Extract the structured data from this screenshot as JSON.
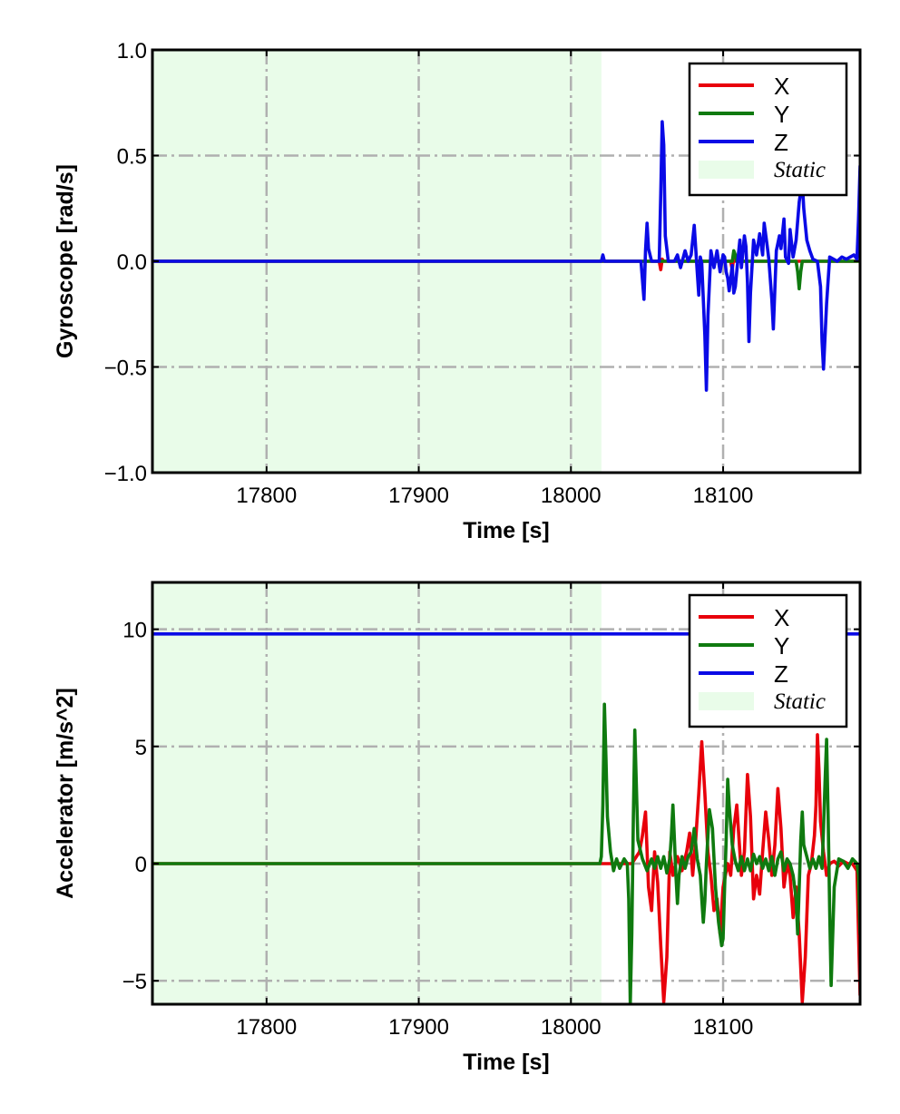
{
  "chart_data": [
    {
      "type": "line",
      "xlabel": "Time [s]",
      "ylabel": "Gyroscope [rad/s]",
      "xlim": [
        17725,
        18190
      ],
      "ylim": [
        -1.0,
        1.0
      ],
      "x_ticks": [
        17800,
        17900,
        18000,
        18100
      ],
      "x_tick_labels": [
        "17800",
        "17900",
        "18000",
        "18100"
      ],
      "y_ticks": [
        -1.0,
        -0.5,
        0.0,
        0.5,
        1.0
      ],
      "y_tick_labels": [
        "−1.0",
        "−0.5",
        "0.0",
        "0.5",
        "1.0"
      ],
      "grid": true,
      "legend_position": "top-right",
      "static_region": {
        "label": "Static",
        "x_start": 17725,
        "x_end": 18020,
        "color": "#e9fce9"
      },
      "series": [
        {
          "name": "X",
          "color": "#e8000b",
          "x": [
            17725,
            18000,
            18020,
            18058,
            18059,
            18060,
            18061,
            18105,
            18106,
            18107,
            18108,
            18190
          ],
          "y": [
            0,
            0,
            0,
            0,
            -0.04,
            0.01,
            0,
            0,
            -0.04,
            0.02,
            0,
            0
          ]
        },
        {
          "name": "Y",
          "color": "#0f7a0f",
          "x": [
            17725,
            18020,
            18106,
            18107,
            18108,
            18109,
            18148,
            18149,
            18150,
            18151,
            18152,
            18190
          ],
          "y": [
            0,
            0,
            0,
            0.05,
            0.03,
            0,
            0,
            -0.05,
            -0.13,
            -0.05,
            0,
            0
          ]
        },
        {
          "name": "Z",
          "color": "#0a0ae6",
          "x": [
            17725,
            18020,
            18021,
            18022,
            18046,
            18048,
            18049,
            18050,
            18051,
            18053,
            18058,
            18059,
            18060,
            18061,
            18062,
            18064,
            18068,
            18070,
            18072,
            18075,
            18077,
            18079,
            18081,
            18083,
            18084,
            18085,
            18086,
            18088,
            18089,
            18090,
            18092,
            18094,
            18096,
            18098,
            18100,
            18101,
            18102,
            18103,
            18104,
            18106,
            18107,
            18108,
            18110,
            18111,
            18112,
            18114,
            18115,
            18116,
            18117,
            18118,
            18120,
            18122,
            18124,
            18126,
            18127,
            18129,
            18130,
            18132,
            18133,
            18135,
            18137,
            18138,
            18140,
            18141,
            18143,
            18144,
            18146,
            18148,
            18150,
            18151,
            18152,
            18153,
            18155,
            18157,
            18159,
            18162,
            18164,
            18165,
            18166,
            18168,
            18170,
            18175,
            18178,
            18181,
            18186,
            18188,
            18189,
            18190
          ],
          "y": [
            0,
            0,
            0.03,
            0,
            0,
            -0.18,
            0.05,
            0.18,
            0.06,
            0,
            0,
            0.32,
            0.66,
            0.55,
            0.12,
            0,
            0,
            0.03,
            -0.03,
            0.05,
            0,
            0.03,
            0.17,
            -0.05,
            -0.16,
            0.02,
            -0.01,
            -0.35,
            -0.61,
            -0.26,
            0.05,
            -0.03,
            0.05,
            -0.05,
            0.03,
            0.02,
            -0.05,
            -0.08,
            -0.14,
            -0.02,
            -0.15,
            -0.12,
            0.03,
            0.1,
            -0.03,
            0.12,
            0.07,
            -0.1,
            -0.38,
            -0.15,
            0.1,
            0.03,
            0.13,
            0.03,
            0.18,
            0.07,
            0.01,
            -0.18,
            -0.32,
            0.05,
            0.12,
            0.06,
            0.2,
            0.02,
            -0.01,
            0.15,
            0.02,
            0.1,
            0.28,
            0.33,
            0.38,
            0.25,
            0.1,
            0.05,
            0.01,
            0,
            -0.12,
            -0.38,
            -0.51,
            -0.2,
            0.02,
            0,
            0.02,
            0.01,
            0.03,
            0.01,
            0.2,
            0.45
          ]
        }
      ]
    },
    {
      "type": "line",
      "xlabel": "Time [s]",
      "ylabel": "Accelerator [m/s^2]",
      "xlim": [
        17725,
        18190
      ],
      "ylim": [
        -6,
        12
      ],
      "x_ticks": [
        17800,
        17900,
        18000,
        18100
      ],
      "x_tick_labels": [
        "17800",
        "17900",
        "18000",
        "18100"
      ],
      "y_ticks": [
        -5,
        0,
        5,
        10
      ],
      "y_tick_labels": [
        "−5",
        "0",
        "5",
        "10"
      ],
      "grid": true,
      "legend_position": "top-right",
      "static_region": {
        "label": "Static",
        "x_start": 17725,
        "x_end": 18020,
        "color": "#e9fce9"
      },
      "series": [
        {
          "name": "X",
          "color": "#e8000b",
          "x": [
            17725,
            18020,
            18040,
            18045,
            18047,
            18049,
            18051,
            18053,
            18055,
            18057,
            18059,
            18061,
            18063,
            18065,
            18067,
            18070,
            18073,
            18076,
            18078,
            18080,
            18082,
            18084,
            18086,
            18088,
            18090,
            18092,
            18094,
            18096,
            18098,
            18100,
            18103,
            18105,
            18107,
            18109,
            18112,
            18114,
            18116,
            18118,
            18120,
            18122,
            18124,
            18126,
            18128,
            18130,
            18132,
            18134,
            18136,
            18138,
            18140,
            18142,
            18144,
            18146,
            18148,
            18150,
            18152,
            18154,
            18156,
            18158,
            18160,
            18161,
            18162,
            18163,
            18164,
            18166,
            18168,
            18170,
            18173,
            18176,
            18179,
            18182,
            18185,
            18188,
            18189,
            18190
          ],
          "y": [
            0,
            0,
            0,
            0.5,
            1.2,
            2.2,
            -1,
            -2,
            0.5,
            -0.8,
            -3.5,
            -5.9,
            -4,
            0.5,
            -0.5,
            0.3,
            -0.3,
            0.5,
            1.3,
            -0.5,
            1,
            3,
            5.2,
            3,
            0.5,
            -0.5,
            -2,
            -1.5,
            -3,
            -1,
            0,
            -0.5,
            1.5,
            2.5,
            -0.5,
            0.5,
            3.8,
            2,
            -1.5,
            -0.5,
            -1.3,
            0.5,
            2.2,
            1,
            -0.5,
            0.8,
            3.2,
            1.5,
            -1,
            0,
            -0.5,
            -2.3,
            -1,
            -3,
            -5.9,
            -4,
            -0.5,
            0,
            1.2,
            2.5,
            5.5,
            4,
            1.8,
            0.5,
            -0.5,
            0,
            0.1,
            -0.1,
            0.1,
            0,
            0,
            -0.3,
            -3,
            -5.6
          ]
        },
        {
          "name": "Y",
          "color": "#0f7a0f",
          "x": [
            17725,
            18019,
            18020,
            18021,
            18022,
            18023,
            18024,
            18026,
            18028,
            18030,
            18032,
            18035,
            18037,
            18038,
            18039,
            18040,
            18041,
            18042,
            18044,
            18047,
            18050,
            18053,
            18055,
            18057,
            18059,
            18061,
            18063,
            18065,
            18066,
            18067,
            18068,
            18069,
            18070,
            18071,
            18073,
            18075,
            18077,
            18079,
            18081,
            18083,
            18085,
            18086,
            18087,
            18088,
            18089,
            18090,
            18091,
            18093,
            18095,
            18097,
            18099,
            18100,
            18101,
            18102,
            18103,
            18104,
            18106,
            18108,
            18110,
            18112,
            18114,
            18116,
            18118,
            18120,
            18122,
            18124,
            18126,
            18128,
            18130,
            18132,
            18134,
            18136,
            18138,
            18140,
            18142,
            18144,
            18146,
            18148,
            18149,
            18150,
            18151,
            18152,
            18153,
            18155,
            18157,
            18159,
            18161,
            18163,
            18165,
            18166,
            18167,
            18168,
            18169,
            18170,
            18171,
            18173,
            18176,
            18179,
            18182,
            18185,
            18188,
            18189,
            18190
          ],
          "y": [
            0,
            0,
            0.3,
            2.5,
            6.8,
            4.5,
            2,
            0.5,
            -0.3,
            0.2,
            -0.2,
            0.2,
            0,
            -1.5,
            -6,
            -3,
            2,
            5.7,
            1,
            0.2,
            -0.3,
            0.2,
            -0.2,
            0.3,
            -0.2,
            0.3,
            -0.4,
            0.2,
            1.2,
            2.5,
            1,
            -0.5,
            -1.7,
            -0.5,
            0.3,
            -0.2,
            0.3,
            0.5,
            1.5,
            0.2,
            -0.5,
            -1.5,
            -2.5,
            -1.6,
            0,
            1.2,
            2.3,
            1.5,
            -1,
            -2.5,
            -3.5,
            -3.2,
            -1,
            1,
            3.6,
            2.5,
            0.8,
            0.1,
            -0.3,
            0.3,
            -0.3,
            0.2,
            -0.3,
            0.4,
            0,
            0.3,
            -0.2,
            0.2,
            -0.3,
            0.3,
            -0.5,
            0.2,
            0.5,
            -0.3,
            0.2,
            0,
            -0.5,
            -1.5,
            -3,
            -1,
            1,
            2.2,
            0.8,
            0.3,
            -0.2,
            0.2,
            -0.2,
            0.3,
            -0.2,
            1.5,
            3.5,
            5.3,
            2,
            -2,
            -5.2,
            -1,
            0.2,
            0.1,
            -0.2,
            0.2,
            0,
            -0.5,
            -3
          ]
        },
        {
          "name": "Z",
          "color": "#0a0ae6",
          "x": [
            17725,
            18190
          ],
          "y": [
            9.8,
            9.8
          ]
        }
      ]
    }
  ]
}
